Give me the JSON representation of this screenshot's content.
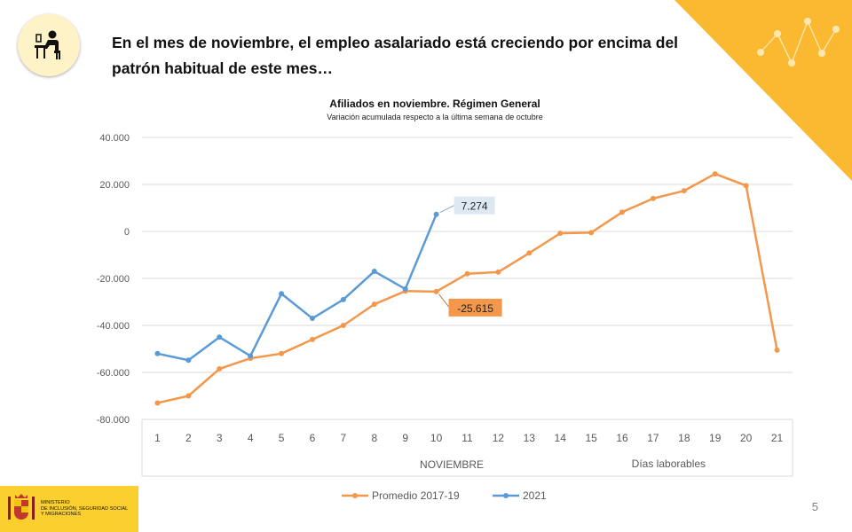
{
  "headline": "En el mes de noviembre, el empleo asalariado  está creciendo por encima del patrón  habitual  de este mes…",
  "icons": {
    "topic_icon": "worker-at-desk-icon",
    "decoration": "network-dots-icon",
    "logo_emblem": "coat-of-arms-icon"
  },
  "colors": {
    "accent": "#fbb931",
    "promedio": "#f3974a",
    "y2021": "#5b9bd5",
    "callout_2021_fill": "#dde8f3",
    "callout_promedio_fill": "#f3974a"
  },
  "chart_data": {
    "type": "line",
    "title": "Afiliados en noviembre. Régimen General",
    "subtitle": "Variación acumulada respecto a la última semana de octubre",
    "categories": [
      "1",
      "2",
      "3",
      "4",
      "5",
      "6",
      "7",
      "8",
      "9",
      "10",
      "11",
      "12",
      "13",
      "14",
      "15",
      "16",
      "17",
      "18",
      "19",
      "20",
      "21"
    ],
    "axis_groups": [
      "NOVIEMBRE",
      "Días laborables"
    ],
    "y_ticks": [
      "40.000",
      "20.000",
      "0",
      "-20.000",
      "-40.000",
      "-60.000",
      "-80.000"
    ],
    "ylim": [
      -80000,
      40000
    ],
    "grid": true,
    "legend_position": "bottom",
    "series": [
      {
        "name": "Promedio 2017-19",
        "color": "#f3974a",
        "values": [
          -73000,
          -70000,
          -58500,
          -54000,
          -52000,
          -46000,
          -40000,
          -31000,
          -25400,
          -25615,
          -18000,
          -17300,
          -9200,
          -800,
          -500,
          8200,
          14000,
          17300,
          24500,
          19500,
          -50500
        ]
      },
      {
        "name": "2021",
        "color": "#5b9bd5",
        "values": [
          -52000,
          -54800,
          -45000,
          -53000,
          -26500,
          -37000,
          -29000,
          -17000,
          -24500,
          7274,
          null,
          null,
          null,
          null,
          null,
          null,
          null,
          null,
          null,
          null,
          null
        ]
      }
    ],
    "annotations": [
      {
        "series": "2021",
        "category": "10",
        "label": "7.274"
      },
      {
        "series": "Promedio 2017-19",
        "category": "10",
        "label": "-25.615"
      }
    ]
  },
  "logo": {
    "lines": [
      "MINISTERIO",
      "DE INCLUSIÓN, SEGURIDAD SOCIAL",
      "Y MIGRACIONES"
    ]
  },
  "page_number": "5"
}
